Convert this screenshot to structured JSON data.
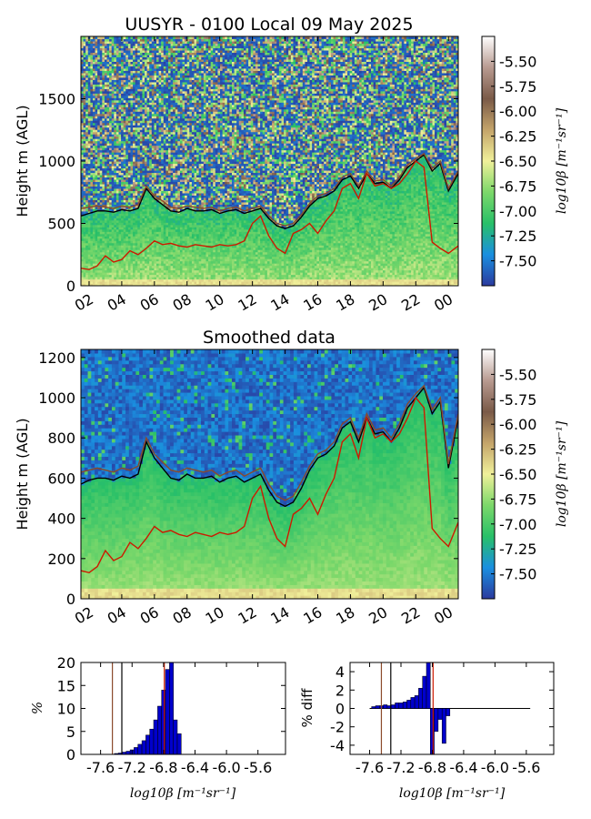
{
  "chart_data": [
    {
      "type": "heatmap",
      "title": "UUSYR - 0100 Local 09 May 2025",
      "ylabel": "Height m (AGL)",
      "ylim": [
        0,
        2000
      ],
      "yticks": [
        "0",
        "500",
        "1000",
        "1500"
      ],
      "ytick_values": [
        0,
        500,
        1000,
        1500
      ],
      "xticks": [
        "02",
        "04",
        "06",
        "08",
        "10",
        "12",
        "14",
        "16",
        "18",
        "20",
        "22",
        "00"
      ],
      "xlim_hours": [
        1.5,
        24.6
      ],
      "colorbar": {
        "label": "log10β [m⁻¹sr⁻¹]",
        "range": [
          -7.75,
          -5.25
        ],
        "ticks": [
          "-5.50",
          "-5.75",
          "-6.00",
          "-6.25",
          "-6.50",
          "-6.75",
          "-7.00",
          "-7.25",
          "-7.50"
        ],
        "tick_values": [
          -5.5,
          -5.75,
          -6.0,
          -6.25,
          -6.5,
          -6.75,
          -7.0,
          -7.25,
          -7.5
        ],
        "colors": [
          "#2b3a9e",
          "#1a8fe0",
          "#28c068",
          "#7cd86a",
          "#f0f09a",
          "#c4a46a",
          "#7a5a48",
          "#b89a90",
          "#ffffff"
        ]
      },
      "series": [
        {
          "color": "#000000",
          "x": [
            1.5,
            2,
            2.5,
            3,
            3.5,
            4,
            4.5,
            5,
            5.5,
            6,
            6.5,
            7,
            7.5,
            8,
            8.5,
            9,
            9.5,
            10,
            10.5,
            11,
            11.5,
            12,
            12.5,
            13,
            13.5,
            14,
            14.5,
            15,
            15.5,
            16,
            16.5,
            17,
            17.5,
            18,
            18.5,
            19,
            19.5,
            20,
            20.5,
            21,
            21.5,
            22,
            22.5,
            23,
            23.5,
            24,
            24.6
          ],
          "y": [
            560,
            580,
            600,
            600,
            590,
            610,
            600,
            620,
            780,
            700,
            650,
            600,
            590,
            620,
            600,
            600,
            610,
            580,
            600,
            610,
            580,
            600,
            620,
            540,
            480,
            460,
            480,
            550,
            640,
            700,
            720,
            760,
            850,
            880,
            780,
            900,
            820,
            830,
            780,
            850,
            950,
            1000,
            1050,
            920,
            980,
            760,
            900
          ]
        },
        {
          "color": "#8b4a2a",
          "x": [
            1.5,
            2,
            2.5,
            3,
            3.5,
            4,
            4.5,
            5,
            5.5,
            6,
            6.5,
            7,
            7.5,
            8,
            8.5,
            9,
            9.5,
            10,
            10.5,
            11,
            11.5,
            12,
            12.5,
            13,
            13.5,
            14,
            14.5,
            15,
            15.5,
            16,
            16.5,
            17,
            17.5,
            18,
            18.5,
            19,
            19.5,
            20,
            20.5,
            21,
            21.5,
            22,
            22.5,
            23,
            23.5,
            24,
            24.6
          ],
          "y": [
            620,
            630,
            640,
            630,
            620,
            640,
            630,
            650,
            800,
            720,
            680,
            630,
            620,
            640,
            630,
            620,
            630,
            600,
            620,
            630,
            600,
            620,
            640,
            560,
            500,
            480,
            500,
            570,
            660,
            720,
            740,
            780,
            870,
            900,
            800,
            920,
            840,
            850,
            800,
            870,
            970,
            1020,
            1060,
            940,
            1000,
            780,
            920
          ]
        },
        {
          "color": "#cc1a00",
          "x": [
            1.5,
            2,
            2.5,
            3,
            3.5,
            4,
            4.5,
            5,
            5.5,
            6,
            6.5,
            7,
            7.5,
            8,
            8.5,
            9,
            9.5,
            10,
            10.5,
            11,
            11.5,
            12,
            12.5,
            13,
            13.5,
            14,
            14.5,
            15,
            15.5,
            16,
            16.5,
            17,
            17.5,
            18,
            18.5,
            19,
            19.5,
            20,
            20.5,
            21,
            21.5,
            22,
            22.5,
            23,
            23.5,
            24,
            24.6
          ],
          "y": [
            140,
            130,
            160,
            240,
            190,
            210,
            280,
            250,
            300,
            360,
            330,
            340,
            320,
            310,
            330,
            320,
            310,
            330,
            320,
            330,
            360,
            500,
            560,
            400,
            300,
            260,
            420,
            450,
            500,
            420,
            520,
            600,
            780,
            820,
            700,
            900,
            800,
            820,
            780,
            820,
            900,
            1000,
            950,
            350,
            300,
            260,
            320
          ]
        }
      ]
    },
    {
      "type": "heatmap",
      "title": "Smoothed data",
      "ylabel": "Height m (AGL)",
      "ylim": [
        0,
        1240
      ],
      "yticks": [
        "0",
        "200",
        "400",
        "600",
        "800",
        "1000",
        "1200"
      ],
      "ytick_values": [
        0,
        200,
        400,
        600,
        800,
        1000,
        1200
      ],
      "xticks": [
        "02",
        "04",
        "06",
        "08",
        "10",
        "12",
        "14",
        "16",
        "18",
        "20",
        "22",
        "00"
      ],
      "xlim_hours": [
        1.5,
        24.6
      ],
      "colorbar": {
        "label": "log10β [m⁻¹sr⁻¹]",
        "range": [
          -7.75,
          -5.25
        ],
        "ticks": [
          "-5.50",
          "-5.75",
          "-6.00",
          "-6.25",
          "-6.50",
          "-6.75",
          "-7.00",
          "-7.25",
          "-7.50"
        ],
        "tick_values": [
          -5.5,
          -5.75,
          -6.0,
          -6.25,
          -6.5,
          -6.75,
          -7.0,
          -7.25,
          -7.5
        ],
        "colors": [
          "#2b3a9e",
          "#1a8fe0",
          "#28c068",
          "#7cd86a",
          "#f0f09a",
          "#c4a46a",
          "#7a5a48",
          "#b89a90",
          "#ffffff"
        ]
      },
      "series": [
        {
          "color": "#000000",
          "x": [
            1.5,
            2,
            2.5,
            3,
            3.5,
            4,
            4.5,
            5,
            5.5,
            6,
            6.5,
            7,
            7.5,
            8,
            8.5,
            9,
            9.5,
            10,
            10.5,
            11,
            11.5,
            12,
            12.5,
            13,
            13.5,
            14,
            14.5,
            15,
            15.5,
            16,
            16.5,
            17,
            17.5,
            18,
            18.5,
            19,
            19.5,
            20,
            20.5,
            21,
            21.5,
            22,
            22.5,
            23,
            23.5,
            24,
            24.6
          ],
          "y": [
            570,
            590,
            600,
            600,
            590,
            610,
            600,
            620,
            780,
            700,
            650,
            600,
            590,
            620,
            600,
            600,
            610,
            580,
            600,
            610,
            580,
            600,
            620,
            540,
            480,
            460,
            480,
            550,
            640,
            700,
            720,
            760,
            850,
            880,
            780,
            900,
            820,
            830,
            780,
            850,
            950,
            1000,
            1050,
            920,
            980,
            650,
            900
          ]
        },
        {
          "color": "#8b4a2a",
          "x": [
            1.5,
            2,
            2.5,
            3,
            3.5,
            4,
            4.5,
            5,
            5.5,
            6,
            6.5,
            7,
            7.5,
            8,
            8.5,
            9,
            9.5,
            10,
            10.5,
            11,
            11.5,
            12,
            12.5,
            13,
            13.5,
            14,
            14.5,
            15,
            15.5,
            16,
            16.5,
            17,
            17.5,
            18,
            18.5,
            19,
            19.5,
            20,
            20.5,
            21,
            21.5,
            22,
            22.5,
            23,
            23.5,
            24,
            24.6
          ],
          "y": [
            630,
            640,
            650,
            640,
            630,
            650,
            640,
            660,
            800,
            720,
            680,
            640,
            630,
            650,
            640,
            630,
            640,
            610,
            630,
            640,
            610,
            630,
            650,
            570,
            510,
            490,
            510,
            580,
            660,
            720,
            740,
            780,
            870,
            900,
            800,
            920,
            840,
            850,
            800,
            870,
            970,
            1020,
            1060,
            940,
            1000,
            670,
            920
          ]
        },
        {
          "color": "#cc1a00",
          "x": [
            1.5,
            2,
            2.5,
            3,
            3.5,
            4,
            4.5,
            5,
            5.5,
            6,
            6.5,
            7,
            7.5,
            8,
            8.5,
            9,
            9.5,
            10,
            10.5,
            11,
            11.5,
            12,
            12.5,
            13,
            13.5,
            14,
            14.5,
            15,
            15.5,
            16,
            16.5,
            17,
            17.5,
            18,
            18.5,
            19,
            19.5,
            20,
            20.5,
            21,
            21.5,
            22,
            22.5,
            23,
            23.5,
            24,
            24.6
          ],
          "y": [
            140,
            130,
            160,
            240,
            190,
            210,
            280,
            250,
            300,
            360,
            330,
            340,
            320,
            310,
            330,
            320,
            310,
            330,
            320,
            330,
            360,
            500,
            560,
            400,
            300,
            260,
            420,
            450,
            500,
            420,
            520,
            600,
            780,
            820,
            700,
            900,
            800,
            820,
            780,
            820,
            900,
            1000,
            950,
            350,
            300,
            260,
            380
          ]
        }
      ]
    },
    {
      "type": "bar",
      "ylabel": "%",
      "xlabel": "log10β [m⁻¹sr⁻¹]",
      "ylim": [
        0,
        20
      ],
      "xlim": [
        -7.85,
        -5.25
      ],
      "yticks": [
        "0",
        "5",
        "10",
        "15",
        "20"
      ],
      "ytick_values": [
        0,
        5,
        10,
        15,
        20
      ],
      "xticks": [
        "-7.6",
        "-7.2",
        "-6.8",
        "-6.4",
        "-6.0",
        "-5.6"
      ],
      "xtick_values": [
        -7.6,
        -7.2,
        -6.8,
        -6.4,
        -6.0,
        -5.6
      ],
      "bar_width": 0.05,
      "bar_color": "#0000cc",
      "x": [
        -7.4,
        -7.35,
        -7.3,
        -7.25,
        -7.2,
        -7.15,
        -7.1,
        -7.05,
        -7.0,
        -6.95,
        -6.9,
        -6.85,
        -6.8,
        -6.75,
        -6.7,
        -6.65,
        -6.6
      ],
      "values": [
        0.2,
        0.3,
        0.5,
        0.7,
        1.0,
        1.5,
        2.2,
        3.0,
        4.2,
        5.5,
        7.5,
        10.5,
        14.0,
        18.5,
        20.0,
        7.5,
        4.5
      ],
      "vlines": [
        {
          "x": -7.45,
          "color": "#8b4a2a"
        },
        {
          "x": -7.33,
          "color": "#000000"
        },
        {
          "x": -6.79,
          "color": "#cc1a00"
        }
      ]
    },
    {
      "type": "bar",
      "ylabel": "% diff",
      "xlabel": "log10β [m⁻¹sr⁻¹]",
      "ylim": [
        -5,
        5
      ],
      "xlim": [
        -7.85,
        -5.25
      ],
      "yticks": [
        "4",
        "2",
        "0",
        "-2",
        "-4"
      ],
      "ytick_values": [
        4,
        2,
        0,
        -2,
        -4
      ],
      "xticks": [
        "-7.6",
        "-7.2",
        "-6.8",
        "-6.4",
        "-6.0",
        "-5.6"
      ],
      "xtick_values": [
        -7.6,
        -7.2,
        -6.8,
        -6.4,
        -6.0,
        -5.6
      ],
      "bar_width": 0.05,
      "bar_color": "#0000cc",
      "baseline": {
        "from": -7.6,
        "to": -5.55
      },
      "x": [
        -7.55,
        -7.5,
        -7.45,
        -7.4,
        -7.35,
        -7.3,
        -7.25,
        -7.2,
        -7.15,
        -7.1,
        -7.05,
        -7.0,
        -6.95,
        -6.9,
        -6.85,
        -6.8,
        -6.75,
        -6.7,
        -6.65,
        -6.6
      ],
      "values": [
        0.2,
        0.3,
        0.3,
        0.4,
        0.3,
        0.4,
        0.6,
        0.6,
        0.7,
        0.9,
        1.2,
        1.4,
        2.2,
        3.5,
        5.0,
        -5.0,
        -2.5,
        -1.2,
        -3.8,
        -0.8
      ],
      "vlines": [
        {
          "x": -7.45,
          "color": "#8b4a2a"
        },
        {
          "x": -7.33,
          "color": "#000000"
        },
        {
          "x": -6.79,
          "color": "#cc1a00"
        }
      ]
    }
  ]
}
